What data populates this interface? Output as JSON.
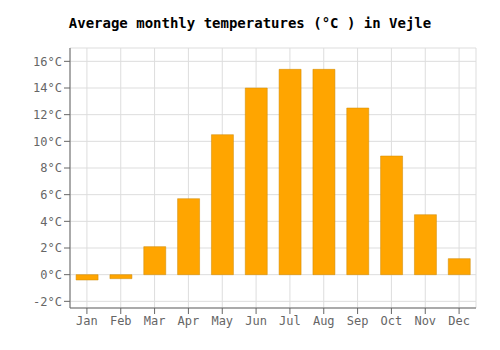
{
  "chart_data": {
    "type": "bar",
    "title": "Average monthly temperatures (°C ) in Vejle",
    "categories": [
      "Jan",
      "Feb",
      "Mar",
      "Apr",
      "May",
      "Jun",
      "Jul",
      "Aug",
      "Sep",
      "Oct",
      "Nov",
      "Dec"
    ],
    "values": [
      -0.4,
      -0.3,
      2.1,
      5.7,
      10.5,
      14.0,
      15.4,
      15.4,
      12.5,
      8.9,
      4.5,
      1.2
    ],
    "color": "#FFA500",
    "ylim": [
      -2.5,
      17
    ],
    "yticks": [
      {
        "value": -2,
        "label": "-2°C"
      },
      {
        "value": 0,
        "label": "0°C"
      },
      {
        "value": 2,
        "label": "2°C"
      },
      {
        "value": 4,
        "label": "4°C"
      },
      {
        "value": 6,
        "label": "6°C"
      },
      {
        "value": 8,
        "label": "8°C"
      },
      {
        "value": 10,
        "label": "10°C"
      },
      {
        "value": 12,
        "label": "12°C"
      },
      {
        "value": 14,
        "label": "14°C"
      },
      {
        "value": 16,
        "label": "16°C"
      }
    ],
    "grid": true
  }
}
